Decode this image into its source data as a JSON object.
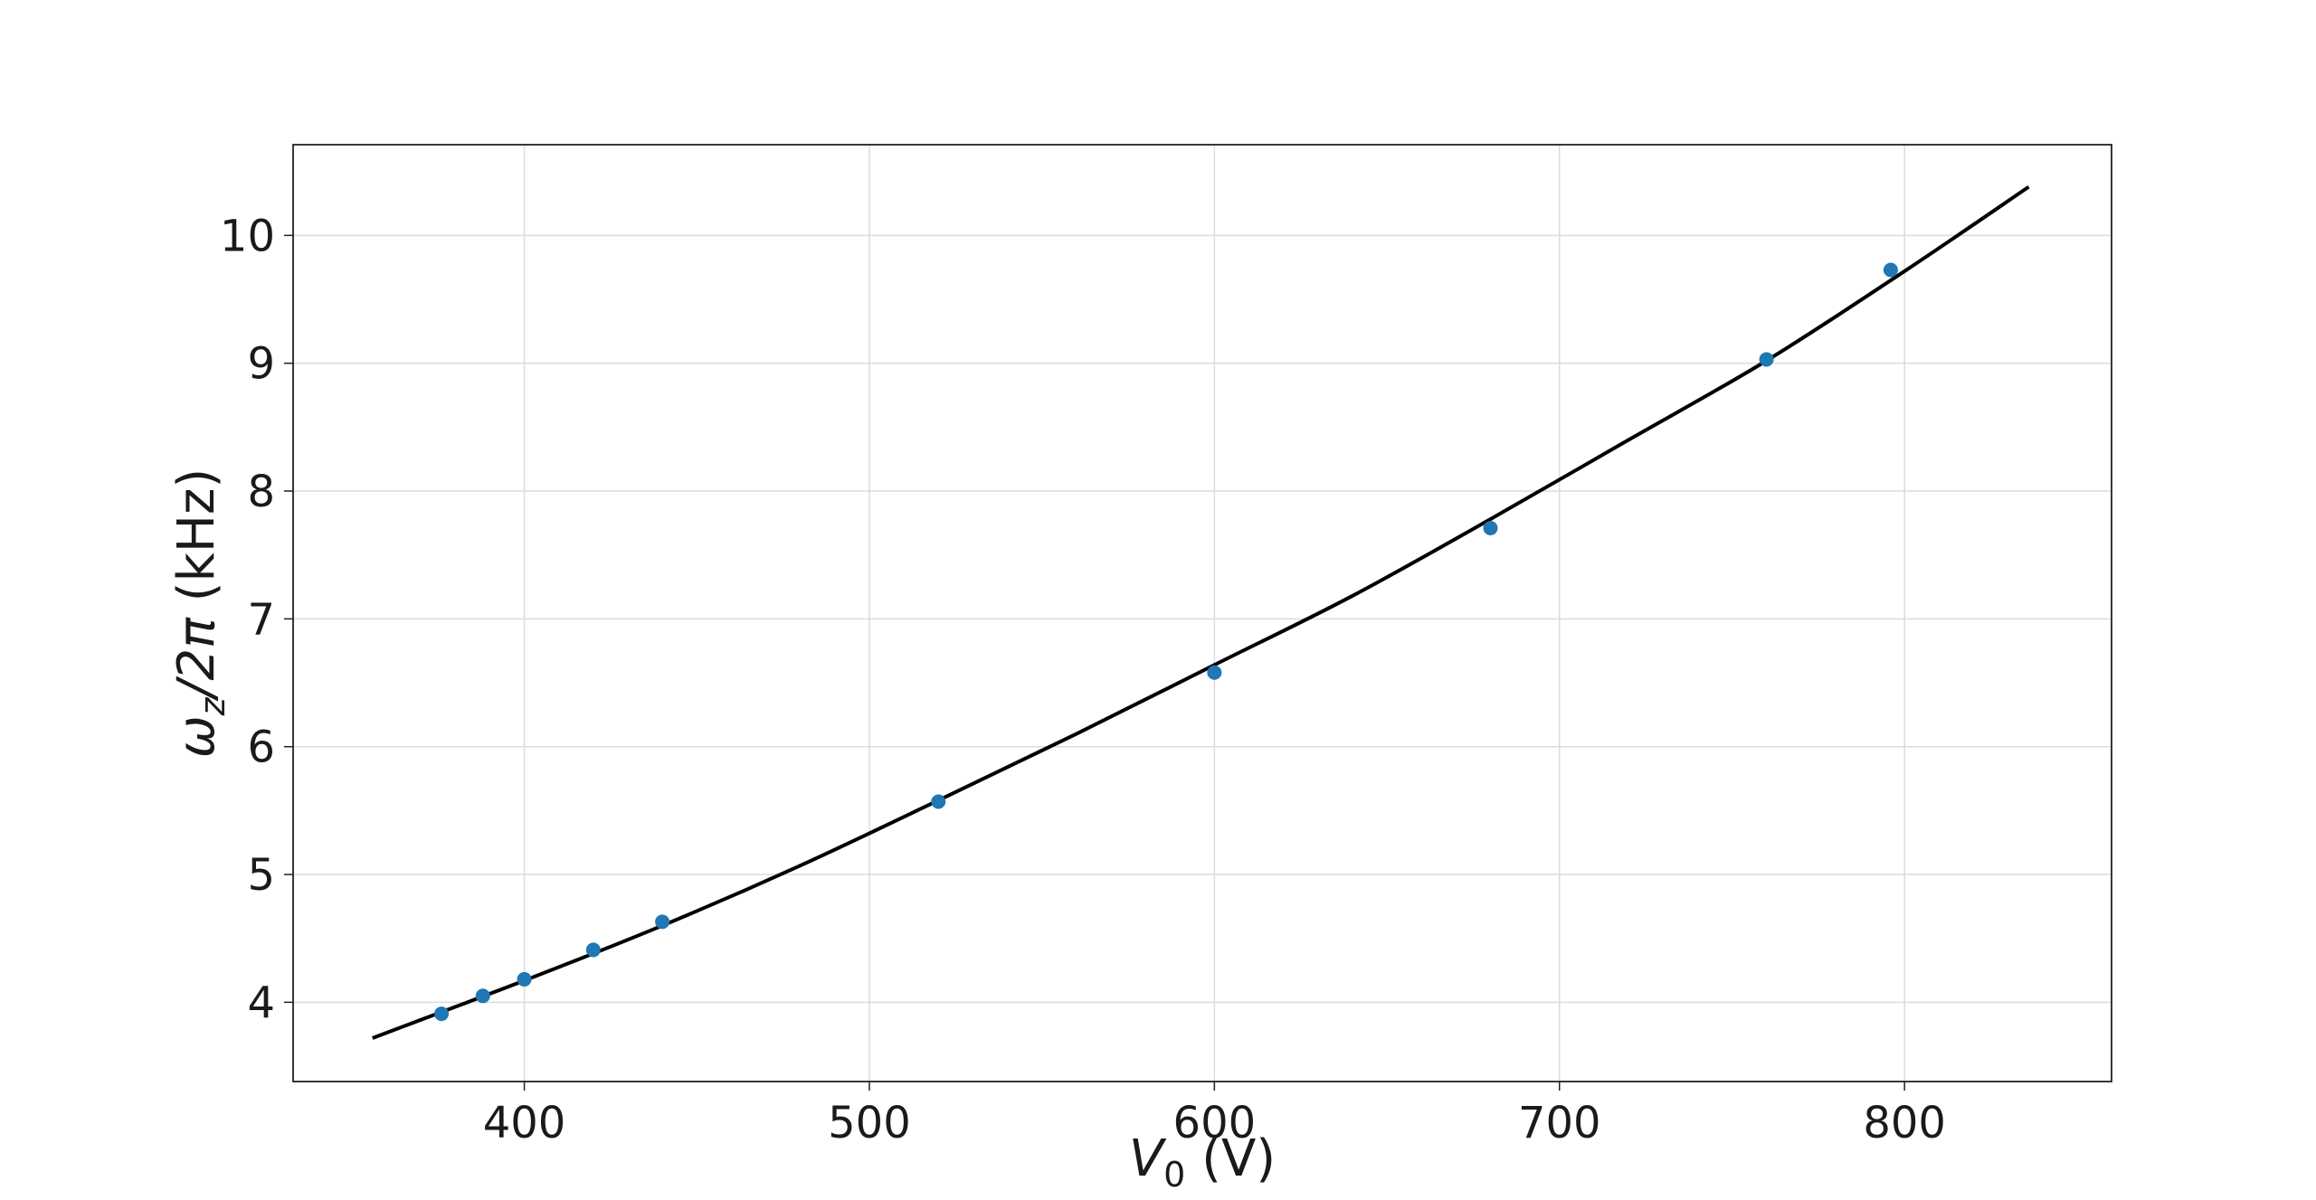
{
  "chart_data": {
    "type": "scatter",
    "xlabel_main": "V",
    "xlabel_sub": "0",
    "xlabel_unit": "(V)",
    "ylabel_main": "ω",
    "ylabel_sub": "z",
    "ylabel_rest": "/2π",
    "ylabel_unit": "(kHz)",
    "xlim": [
      333,
      860
    ],
    "ylim": [
      3.38,
      10.71
    ],
    "xticks": [
      400,
      500,
      600,
      700,
      800
    ],
    "yticks": [
      4,
      5,
      6,
      7,
      8,
      9,
      10
    ],
    "grid": true,
    "series": [
      {
        "kind": "points",
        "color": "#1f77b4",
        "x": [
          376,
          388,
          400,
          420,
          440,
          520,
          600,
          680,
          760,
          796
        ],
        "y": [
          3.91,
          4.05,
          4.18,
          4.41,
          4.63,
          5.57,
          6.58,
          7.71,
          9.03,
          9.73
        ]
      },
      {
        "kind": "line",
        "color": "#000000",
        "x": [
          356,
          400,
          440,
          480,
          520,
          560,
          600,
          640,
          680,
          720,
          760,
          800,
          836
        ],
        "y": [
          3.72,
          4.17,
          4.6,
          5.07,
          5.58,
          6.1,
          6.64,
          7.18,
          7.78,
          8.4,
          9.02,
          9.72,
          10.38
        ]
      }
    ]
  }
}
